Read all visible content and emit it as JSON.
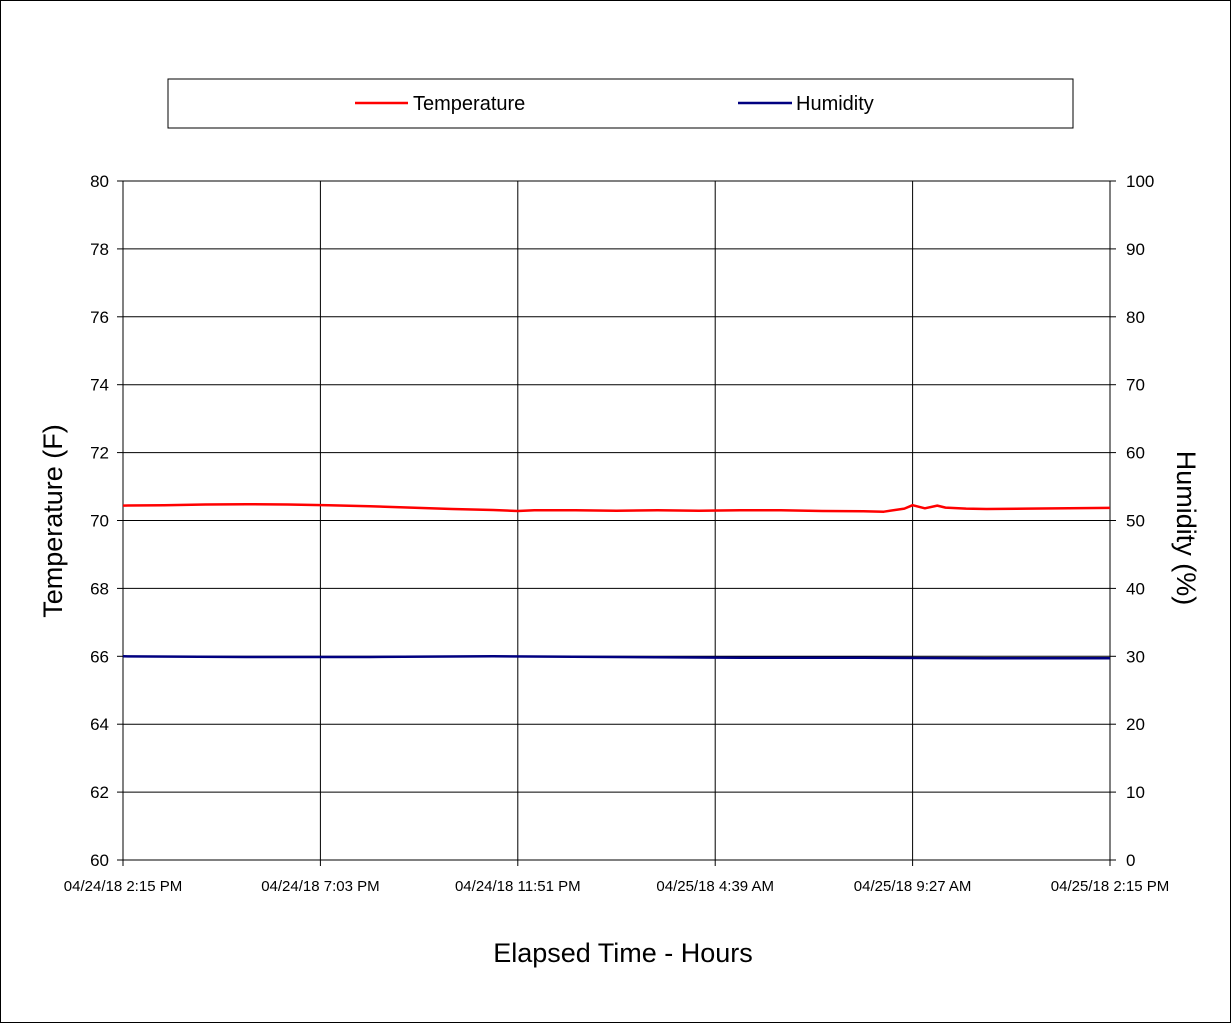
{
  "chart_data": {
    "type": "line",
    "title": "",
    "xlabel": "Elapsed Time - Hours",
    "ylabel_left": "Temperature (F)",
    "ylabel_right": "Humidity (%)",
    "x_ticks": [
      "04/24/18 2:15 PM",
      "04/24/18 7:03 PM",
      "04/24/18 11:51 PM",
      "04/25/18 4:39 AM",
      "04/25/18 9:27 AM",
      "04/25/18 2:15 PM"
    ],
    "x_range_hours": [
      0,
      24
    ],
    "ylim_left": [
      60,
      80
    ],
    "ylim_right": [
      0,
      100
    ],
    "yticks_left": [
      "80",
      "78",
      "76",
      "74",
      "72",
      "70",
      "68",
      "66",
      "64",
      "62",
      "60"
    ],
    "yticks_right": [
      "100",
      "90",
      "80",
      "70",
      "60",
      "50",
      "40",
      "30",
      "20",
      "10",
      "0"
    ],
    "grid": true,
    "legend_position": "top",
    "series": [
      {
        "name": "Temperature",
        "axis": "left",
        "color": "#ff0000",
        "x": [
          0,
          1,
          2,
          3,
          4,
          5,
          6,
          7,
          8,
          9,
          9.6,
          10,
          11,
          12,
          13,
          14,
          15,
          16,
          17,
          18,
          18.5,
          19,
          19.2,
          19.5,
          19.8,
          20,
          20.5,
          21,
          22,
          23,
          24
        ],
        "values": [
          70.44,
          70.45,
          70.47,
          70.48,
          70.47,
          70.45,
          70.42,
          70.38,
          70.34,
          70.31,
          70.28,
          70.3,
          70.3,
          70.29,
          70.3,
          70.29,
          70.3,
          70.3,
          70.28,
          70.27,
          70.26,
          70.35,
          70.45,
          70.36,
          70.44,
          70.38,
          70.35,
          70.34,
          70.35,
          70.36,
          70.37
        ]
      },
      {
        "name": "Humidity",
        "axis": "right",
        "color": "#000080",
        "x": [
          0,
          3,
          6,
          9,
          12,
          15,
          18,
          21,
          24
        ],
        "values": [
          30.0,
          29.9,
          29.9,
          30.0,
          29.9,
          29.8,
          29.8,
          29.7,
          29.7
        ]
      }
    ]
  }
}
